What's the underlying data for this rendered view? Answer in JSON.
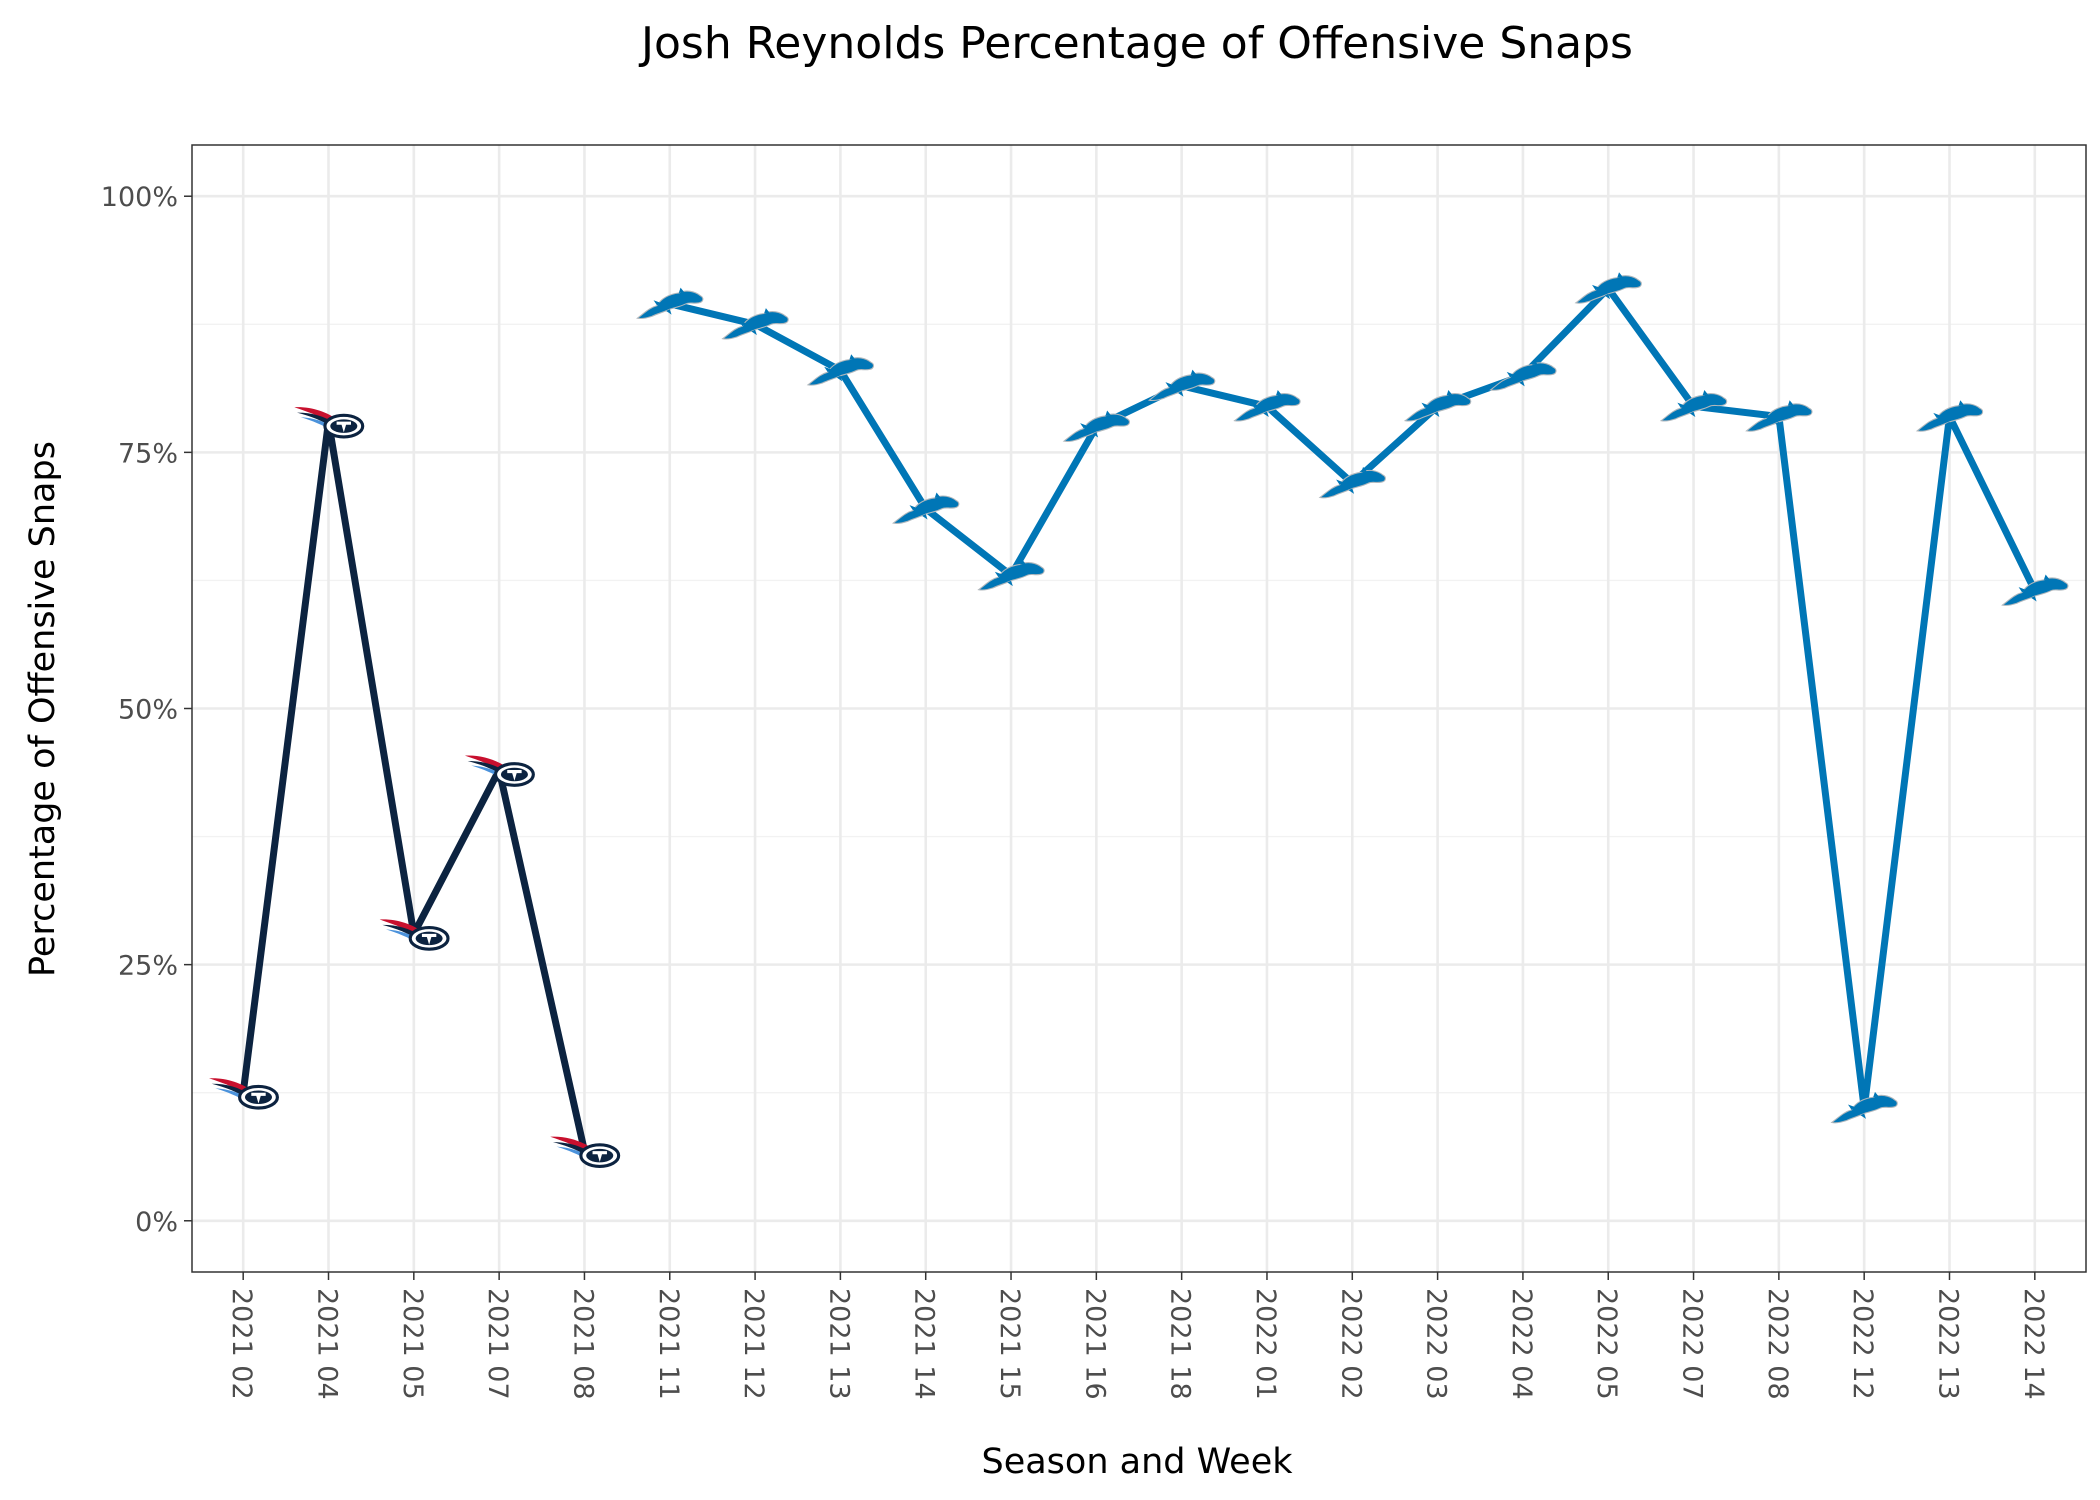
{
  "chart_data": {
    "type": "line",
    "title": "Josh Reynolds Percentage of Offensive Snaps",
    "xlabel": "Season and Week",
    "ylabel": "Percentage of Offensive Snaps",
    "categories": [
      "2021 02",
      "2021 04",
      "2021 05",
      "2021 07",
      "2021 08",
      "2021 11",
      "2021 12",
      "2021 13",
      "2021 14",
      "2021 15",
      "2021 16",
      "2021 18",
      "2022 01",
      "2022 02",
      "2022 03",
      "2022 04",
      "2022 05",
      "2022 07",
      "2022 08",
      "2022 12",
      "2022 13",
      "2022 14"
    ],
    "y_ticks": [
      "0%",
      "25%",
      "50%",
      "75%",
      "100%"
    ],
    "y_tick_values": [
      0,
      0.25,
      0.5,
      0.75,
      1.0
    ],
    "ylim": [
      -0.05,
      1.05
    ],
    "grid": true,
    "series": [
      {
        "team_icon": "titans-logo-icon",
        "color": "#0c2340",
        "points": [
          {
            "x": "2021 02",
            "y": 0.125
          },
          {
            "x": "2021 04",
            "y": 0.78
          },
          {
            "x": "2021 05",
            "y": 0.28
          },
          {
            "x": "2021 07",
            "y": 0.44
          },
          {
            "x": "2021 08",
            "y": 0.068
          }
        ]
      },
      {
        "team_icon": "lions-logo-icon",
        "color": "#0076b6",
        "points": [
          {
            "x": "2021 11",
            "y": 0.895
          },
          {
            "x": "2021 12",
            "y": 0.875
          },
          {
            "x": "2021 13",
            "y": 0.83
          },
          {
            "x": "2021 14",
            "y": 0.695
          },
          {
            "x": "2021 15",
            "y": 0.63
          },
          {
            "x": "2021 16",
            "y": 0.775
          },
          {
            "x": "2021 18",
            "y": 0.815
          },
          {
            "x": "2022 01",
            "y": 0.795
          },
          {
            "x": "2022 02",
            "y": 0.72
          },
          {
            "x": "2022 03",
            "y": 0.795
          },
          {
            "x": "2022 04",
            "y": 0.825
          },
          {
            "x": "2022 05",
            "y": 0.91
          },
          {
            "x": "2022 07",
            "y": 0.795
          },
          {
            "x": "2022 08",
            "y": 0.785
          },
          {
            "x": "2022 12",
            "y": 0.11
          },
          {
            "x": "2022 13",
            "y": 0.785
          },
          {
            "x": "2022 14",
            "y": 0.615
          }
        ]
      }
    ]
  }
}
